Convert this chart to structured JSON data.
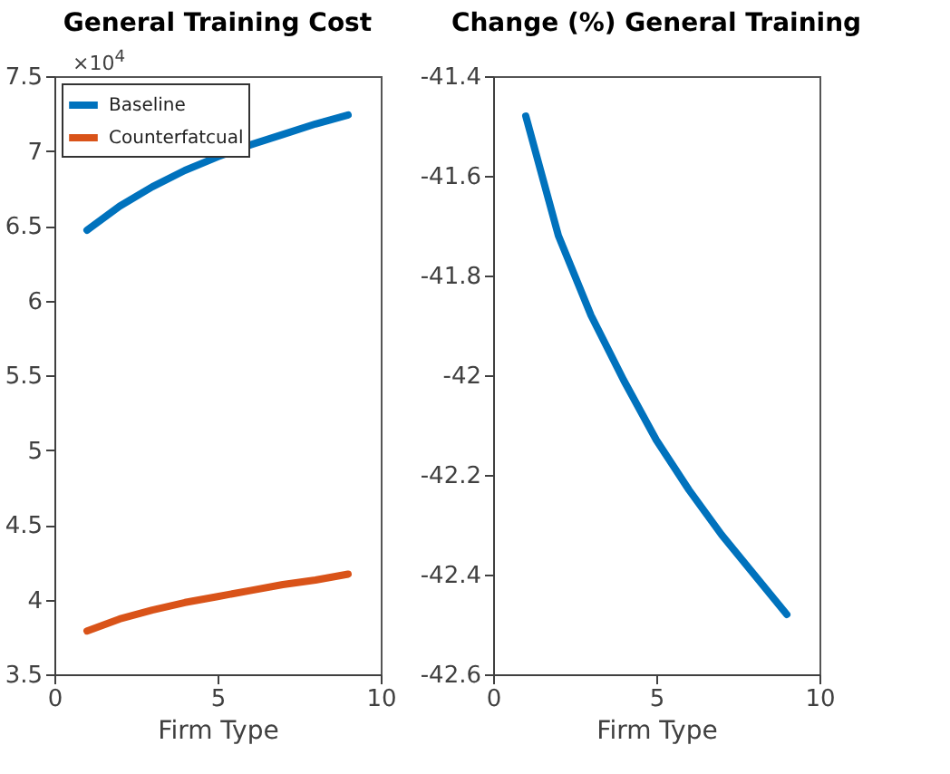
{
  "chart_data": [
    {
      "type": "line",
      "title": "General Training Cost",
      "xlabel": "Firm Type",
      "x": [
        1,
        2,
        3,
        4,
        5,
        6,
        7,
        8,
        9
      ],
      "series": [
        {
          "name": "Baseline",
          "color": "#0072bd",
          "values": [
            6.47,
            6.63,
            6.76,
            6.87,
            6.96,
            7.04,
            7.11,
            7.18,
            7.24
          ]
        },
        {
          "name": "Counterfatcual",
          "color": "#d95319",
          "values": [
            3.79,
            3.87,
            3.93,
            3.98,
            4.02,
            4.06,
            4.1,
            4.13,
            4.17
          ]
        }
      ],
      "xlim": [
        0,
        10
      ],
      "xticks": [
        0,
        5,
        10
      ],
      "ylim": [
        3.5,
        7.5
      ],
      "yticks": [
        3.5,
        4,
        4.5,
        5,
        5.5,
        6,
        6.5,
        7,
        7.5
      ],
      "legend": "top left",
      "grid": false,
      "annotations": [
        "×10$^{4}$"
      ]
    },
    {
      "type": "line",
      "title": "Change (%) General Training",
      "xlabel": "Firm Type",
      "x": [
        1,
        2,
        3,
        4,
        5,
        6,
        7,
        8,
        9
      ],
      "series": [
        {
          "color": "#0072bd",
          "values": [
            -41.48,
            -41.72,
            -41.88,
            -42.01,
            -42.13,
            -42.23,
            -42.32,
            -42.4,
            -42.48
          ]
        }
      ],
      "xlim": [
        0,
        10
      ],
      "xticks": [
        0,
        5,
        10
      ],
      "ylim": [
        -42.6,
        -41.4
      ],
      "yticks": [
        -42.6,
        -42.4,
        -42.2,
        -42,
        -41.8,
        -41.6,
        -41.4
      ],
      "grid": false
    }
  ]
}
